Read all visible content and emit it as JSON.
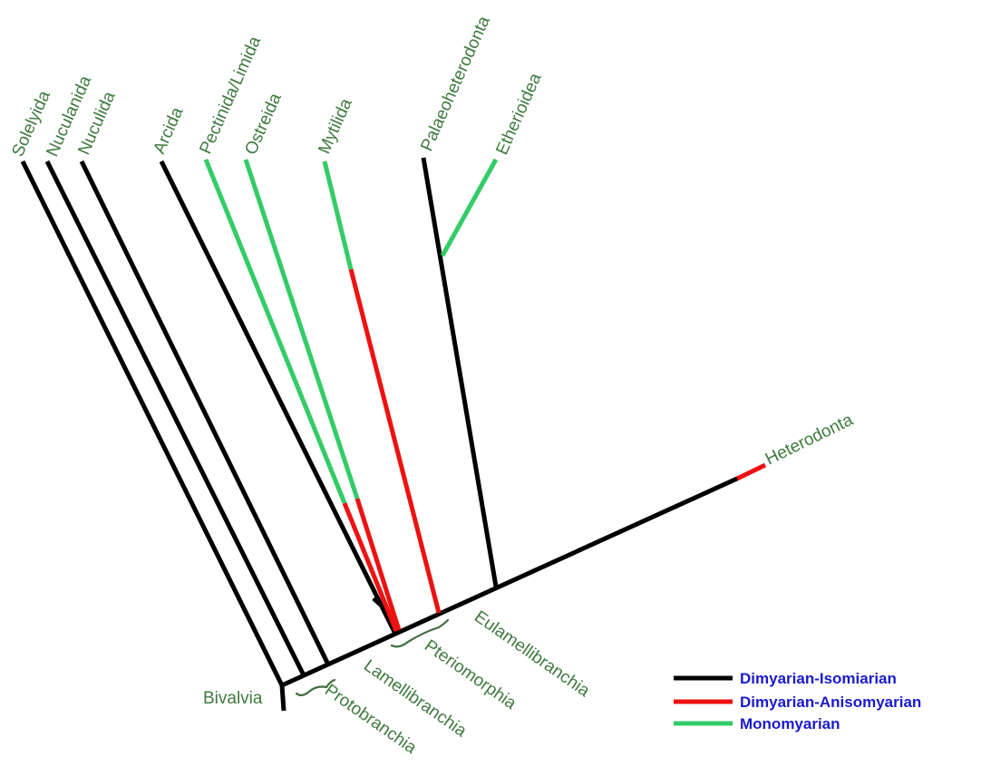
{
  "colors": {
    "isomiarian": "#000000",
    "anisomyarian": "#ee1111",
    "monomyarian": "#33cc66",
    "label": "#3f7a3f",
    "legend_text": "#1a1acc"
  },
  "taxa": {
    "solelyida": "Solelyida",
    "nuculanida": "Nuculanida",
    "nuculida": "Nuculida",
    "arcida": "Arcida",
    "pectinida_limida": "Pectinida/Limida",
    "ostreida": "Ostreida",
    "mytilida": "Mytilida",
    "palaeoheterodonta": "Palaeoheterodonta",
    "etherioidea": "Etherioidea",
    "heterodonta": "Heterodonta"
  },
  "clades": {
    "bivalvia": "Bivalvia",
    "protobranchia": "Protobranchia",
    "lamellibranchia": "Lamellibranchia",
    "pteriomorphia": "Pteriomorphia",
    "eulamellibranchia": "Eulamellibranchia"
  },
  "legend": [
    {
      "label": "Dimyarian-Isomiarian",
      "color": "#000000"
    },
    {
      "label": "Dimyarian-Anisomyarian",
      "color": "#ee1111"
    },
    {
      "label": "Monomyarian",
      "color": "#33cc66"
    }
  ]
}
